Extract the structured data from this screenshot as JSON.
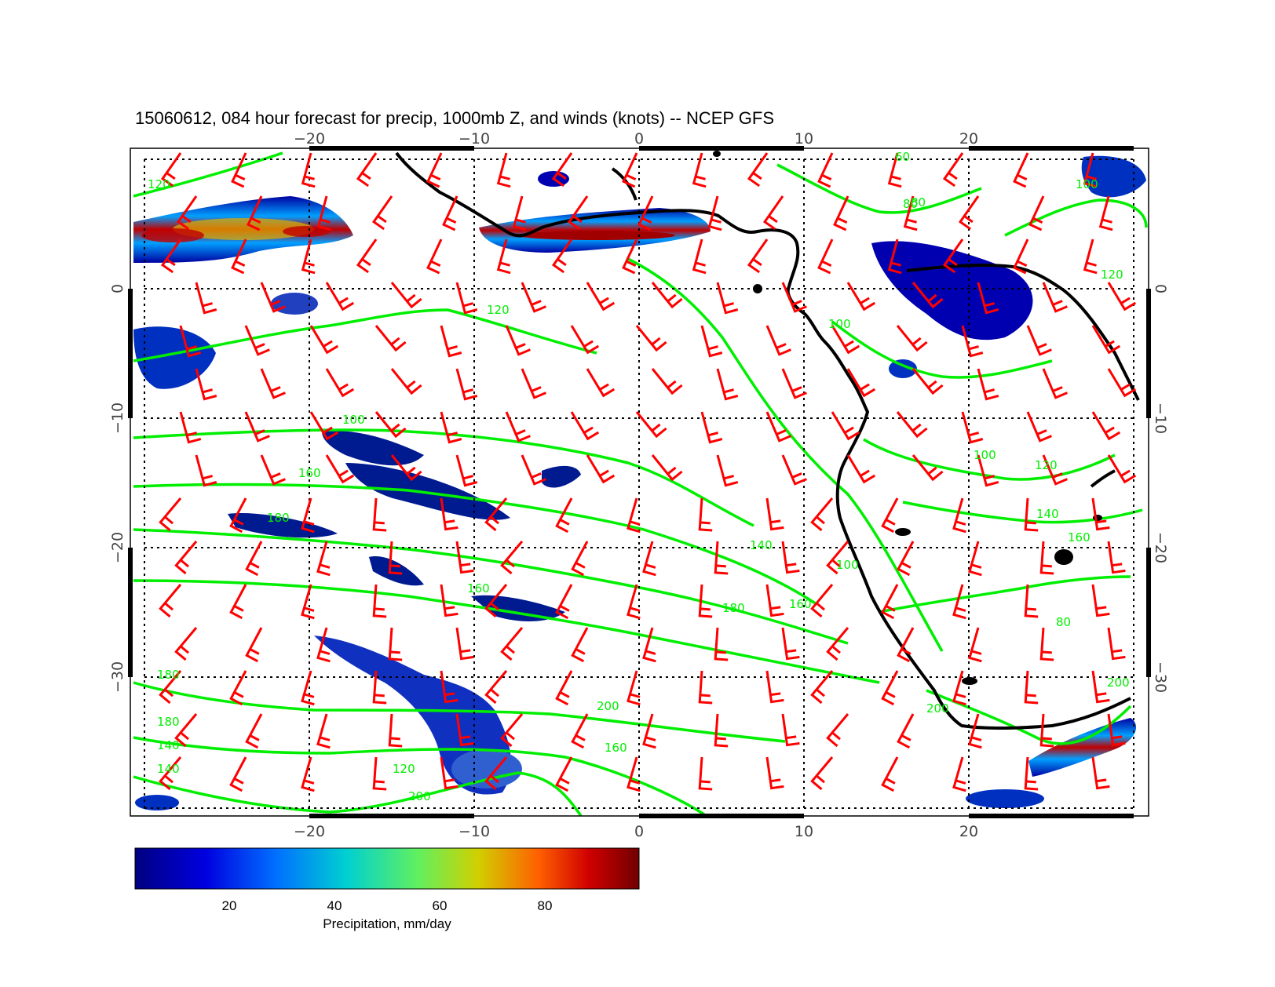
{
  "title": "15060612, 084 hour forecast for precip, 1000mb Z, and winds (knots) -- NCEP GFS",
  "map": {
    "lon_range": [
      -30,
      30
    ],
    "lat_range": [
      -40,
      10
    ],
    "lon_ticks": [
      "−20",
      "−10",
      "0",
      "10",
      "20"
    ],
    "lat_ticks": [
      "0",
      "−10",
      "−20",
      "−30"
    ],
    "grid": "dotted every 10 degrees",
    "colors": {
      "frame": "#000000",
      "grid": "#000000",
      "contour": "#00ee00",
      "wind_barb": "#ff0000",
      "coastline": "#000000"
    },
    "contour_labels": [
      "120",
      "80",
      "60",
      "100",
      "120",
      "160",
      "180",
      "100",
      "140",
      "160",
      "100",
      "120",
      "140",
      "160",
      "180",
      "200",
      "180",
      "160",
      "140",
      "120",
      "200",
      "180",
      "200",
      "100",
      "160",
      "140",
      "80",
      "100",
      "200",
      "80",
      "120"
    ]
  },
  "colorbar": {
    "ticks": [
      "20",
      "40",
      "60",
      "80"
    ],
    "label": "Precipitation, mm/day",
    "colors": [
      "#000080",
      "#0000ff",
      "#00c8c8",
      "#00ff80",
      "#c8c800",
      "#ff6000",
      "#c00000",
      "#800000"
    ]
  }
}
